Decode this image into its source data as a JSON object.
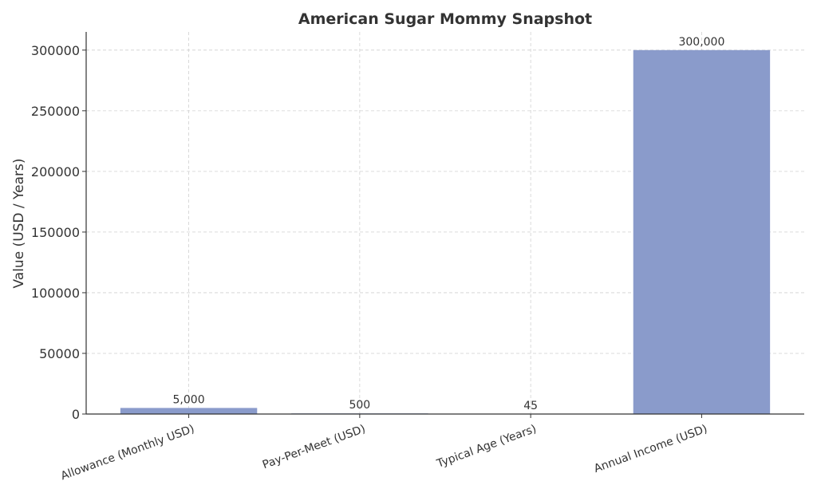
{
  "chart_data": {
    "type": "bar",
    "title": "American Sugar Mommy Snapshot",
    "xlabel": "",
    "ylabel": "Value (USD / Years)",
    "categories": [
      "Allowance (Monthly USD)",
      "Pay-Per-Meet (USD)",
      "Typical Age (Years)",
      "Annual Income (USD)"
    ],
    "values": [
      5000,
      500,
      45,
      300000
    ],
    "data_labels": [
      "5,000",
      "500",
      "45",
      "300,000"
    ],
    "ylim": [
      0,
      315000
    ],
    "yticks": [
      0,
      50000,
      100000,
      150000,
      200000,
      250000,
      300000
    ],
    "ytick_labels": [
      "0",
      "50000",
      "100000",
      "150000",
      "200000",
      "250000",
      "300000"
    ],
    "grid": true,
    "bar_color": "#8a9bcb",
    "xtick_rotation_deg": 20
  }
}
